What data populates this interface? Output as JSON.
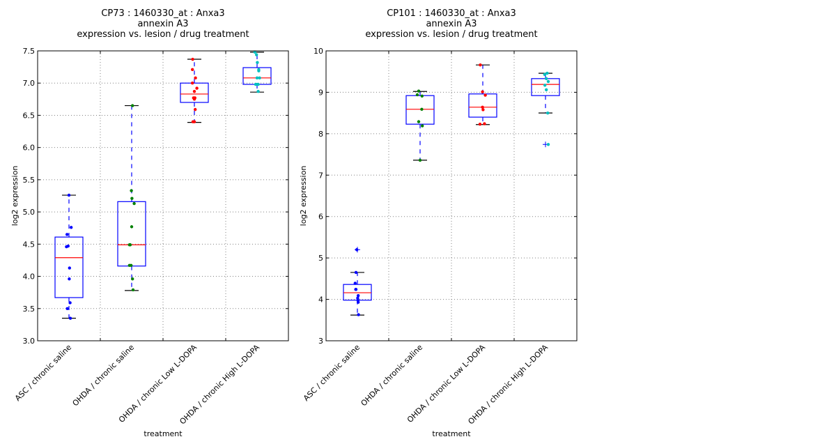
{
  "chart_data": [
    {
      "type": "box",
      "title": [
        "CP73 : 1460330_at : Anxa3",
        "annexin A3",
        "expression vs. lesion / drug treatment"
      ],
      "xlabel": "treatment",
      "ylabel": "log2 expression",
      "ylim": [
        3.0,
        7.5
      ],
      "yticks": [
        "3.0",
        "3.5",
        "4.0",
        "4.5",
        "5.0",
        "5.5",
        "6.0",
        "6.5",
        "7.0",
        "7.5"
      ],
      "grid": true,
      "categories": [
        "ASC / chronic saline",
        "OHDA / chronic saline",
        "OHDA / chronic Low L-DOPA",
        "OHDA / chronic High L-DOPA"
      ],
      "boxes": [
        {
          "whislo": 3.35,
          "q1": 3.67,
          "med": 4.29,
          "q3": 4.61,
          "whishi": 5.26,
          "fliers": []
        },
        {
          "whislo": 3.78,
          "q1": 4.16,
          "med": 4.49,
          "q3": 5.16,
          "whishi": 6.65,
          "fliers": []
        },
        {
          "whislo": 6.39,
          "q1": 6.7,
          "med": 6.83,
          "q3": 7.0,
          "whishi": 7.37,
          "fliers": []
        },
        {
          "whislo": 6.86,
          "q1": 6.98,
          "med": 7.08,
          "q3": 7.24,
          "whishi": 7.48,
          "fliers": []
        }
      ],
      "points": [
        {
          "values": [
            5.26,
            4.76,
            4.65,
            4.46,
            4.47,
            4.13,
            3.96,
            3.59,
            3.5,
            3.35
          ],
          "jitter": [
            0.0,
            0.08,
            -0.07,
            -0.09,
            -0.03,
            0.02,
            0.01,
            0.04,
            -0.06,
            0.05
          ],
          "color": "#0000ff"
        },
        {
          "values": [
            6.65,
            5.33,
            5.21,
            5.13,
            4.77,
            4.49,
            4.49,
            4.17,
            4.17,
            3.96,
            3.79
          ],
          "jitter": [
            0.03,
            -0.01,
            0.01,
            0.09,
            0.0,
            -0.08,
            -0.05,
            -0.08,
            -0.02,
            0.03,
            0.05
          ],
          "color": "#008000"
        },
        {
          "values": [
            7.37,
            7.21,
            7.08,
            7.0,
            6.92,
            6.87,
            6.77,
            6.77,
            6.75,
            6.59,
            6.4,
            6.4
          ],
          "jitter": [
            -0.06,
            -0.07,
            0.04,
            -0.07,
            0.09,
            0.0,
            -0.03,
            0.02,
            0.0,
            0.03,
            -0.05,
            0.0
          ],
          "color": "#ff0000"
        },
        {
          "values": [
            7.48,
            7.44,
            7.32,
            7.21,
            7.19,
            7.08,
            7.08,
            6.98,
            6.98,
            6.98,
            6.87
          ],
          "jitter": [
            -0.08,
            -0.02,
            0.01,
            0.06,
            0.06,
            0.0,
            0.09,
            -0.05,
            -0.01,
            0.04,
            0.04
          ],
          "color": "#00bfbf"
        }
      ]
    },
    {
      "type": "box",
      "title": [
        "CP101 : 1460330_at : Anxa3",
        "annexin A3",
        "expression vs. lesion / drug treatment"
      ],
      "xlabel": "treatment",
      "ylabel": "log2 expression",
      "ylim": [
        3,
        10
      ],
      "yticks": [
        "3",
        "4",
        "5",
        "6",
        "7",
        "8",
        "9",
        "10"
      ],
      "grid": true,
      "categories": [
        "ASC / chronic saline",
        "OHDA / chronic saline",
        "OHDA / chronic Low L-DOPA",
        "OHDA / chronic High L-DOPA"
      ],
      "boxes": [
        {
          "whislo": 3.62,
          "q1": 3.98,
          "med": 4.16,
          "q3": 4.36,
          "whishi": 4.65,
          "fliers": [
            5.2
          ]
        },
        {
          "whislo": 7.36,
          "q1": 8.23,
          "med": 8.59,
          "q3": 8.92,
          "whishi": 9.02,
          "fliers": []
        },
        {
          "whislo": 8.22,
          "q1": 8.4,
          "med": 8.64,
          "q3": 8.96,
          "whishi": 9.66,
          "fliers": []
        },
        {
          "whislo": 8.5,
          "q1": 8.92,
          "med": 9.19,
          "q3": 9.33,
          "whishi": 9.46,
          "fliers": [
            7.74
          ]
        }
      ],
      "points": [
        {
          "values": [
            5.2,
            4.65,
            4.39,
            4.24,
            4.24,
            4.09,
            4.03,
            3.98,
            3.93,
            3.63
          ],
          "jitter": [
            -0.02,
            -0.05,
            -0.08,
            -0.06,
            -0.05,
            0.03,
            0.01,
            0.02,
            0.03,
            0.04
          ],
          "color": "#0000ff"
        },
        {
          "values": [
            9.03,
            8.94,
            8.91,
            8.59,
            8.29,
            8.19,
            7.36
          ],
          "jitter": [
            -0.05,
            -0.1,
            0.07,
            0.06,
            -0.05,
            0.08,
            0.0
          ],
          "color": "#008000"
        },
        {
          "values": [
            9.66,
            9.01,
            8.93,
            8.64,
            8.58,
            8.23,
            8.24
          ],
          "jitter": [
            -0.09,
            -0.01,
            0.09,
            -0.01,
            0.01,
            -0.1,
            0.06
          ],
          "color": "#ff0000"
        },
        {
          "values": [
            9.46,
            9.43,
            9.33,
            9.26,
            9.17,
            9.06,
            8.5,
            7.74
          ],
          "jitter": [
            0.06,
            -0.03,
            0.03,
            0.1,
            -0.02,
            0.03,
            0.08,
            0.1
          ],
          "color": "#00bfbf"
        }
      ]
    }
  ],
  "colors": {
    "box": "#0000ff",
    "median": "#ff0000",
    "whisker": "#0000ff",
    "cap": "#000000",
    "flier": "#0000ff",
    "grid": "#808080"
  }
}
